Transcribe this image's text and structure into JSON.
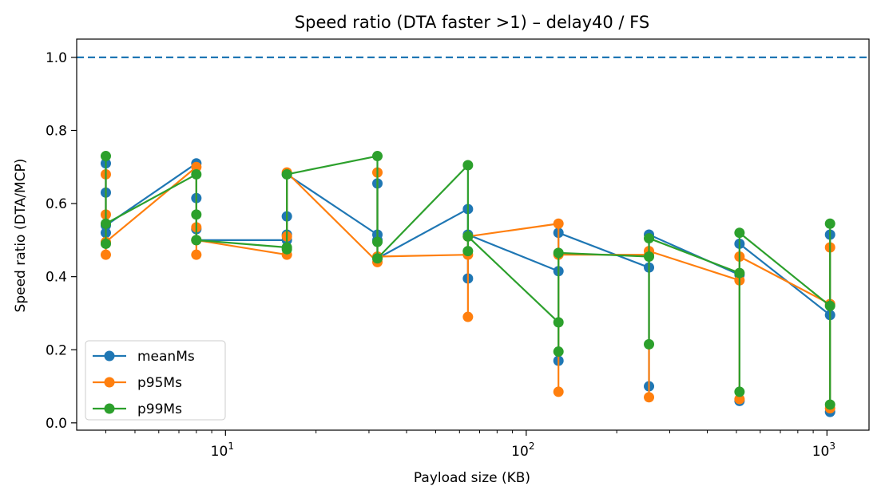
{
  "chart_data": {
    "type": "line",
    "title": "Speed ratio (DTA faster >1) – delay40 / FS",
    "xlabel": "Payload size (KB)",
    "ylabel": "Speed ratio (DTA/MCP)",
    "xscale": "log",
    "xlim": [
      3.2,
      1380
    ],
    "ylim": [
      -0.02,
      1.05
    ],
    "x_ticks": [
      {
        "value": 10,
        "base": "10",
        "exp": "1"
      },
      {
        "value": 100,
        "base": "10",
        "exp": "2"
      },
      {
        "value": 1000,
        "base": "10",
        "exp": "3"
      }
    ],
    "y_ticks": [
      "0.0",
      "0.2",
      "0.4",
      "0.6",
      "0.8",
      "1.0"
    ],
    "reference_line": {
      "y": 1.0,
      "style": "dashed",
      "color": "#1f77b4"
    },
    "legend_position": "lower-left",
    "series": [
      {
        "name": "meanMs",
        "color": "#1f77b4",
        "points": [
          [
            4,
            0.52
          ],
          [
            4,
            0.71
          ],
          [
            4,
            0.63
          ],
          [
            4,
            0.54
          ],
          [
            8,
            0.71
          ],
          [
            8,
            0.615
          ],
          [
            8,
            0.53
          ],
          [
            8,
            0.5
          ],
          [
            16,
            0.5
          ],
          [
            16,
            0.515
          ],
          [
            16,
            0.565
          ],
          [
            16,
            0.68
          ],
          [
            32,
            0.515
          ],
          [
            32,
            0.5
          ],
          [
            32,
            0.655
          ],
          [
            32,
            0.45
          ],
          [
            64,
            0.585
          ],
          [
            64,
            0.395
          ],
          [
            64,
            0.515
          ],
          [
            128,
            0.415
          ],
          [
            128,
            0.17
          ],
          [
            128,
            0.52
          ],
          [
            256,
            0.425
          ],
          [
            256,
            0.1
          ],
          [
            256,
            0.515
          ],
          [
            512,
            0.405
          ],
          [
            512,
            0.06
          ],
          [
            512,
            0.49
          ],
          [
            1024,
            0.295
          ],
          [
            1024,
            0.03
          ],
          [
            1024,
            0.515
          ]
        ]
      },
      {
        "name": "p95Ms",
        "color": "#ff7f0e",
        "points": [
          [
            4,
            0.46
          ],
          [
            4,
            0.68
          ],
          [
            4,
            0.57
          ],
          [
            4,
            0.495
          ],
          [
            8,
            0.7
          ],
          [
            8,
            0.535
          ],
          [
            8,
            0.46
          ],
          [
            8,
            0.5
          ],
          [
            16,
            0.46
          ],
          [
            16,
            0.51
          ],
          [
            16,
            0.685
          ],
          [
            32,
            0.44
          ],
          [
            32,
            0.685
          ],
          [
            32,
            0.455
          ],
          [
            64,
            0.46
          ],
          [
            64,
            0.29
          ],
          [
            64,
            0.51
          ],
          [
            128,
            0.545
          ],
          [
            128,
            0.085
          ],
          [
            128,
            0.46
          ],
          [
            256,
            0.46
          ],
          [
            256,
            0.07
          ],
          [
            256,
            0.47
          ],
          [
            512,
            0.39
          ],
          [
            512,
            0.065
          ],
          [
            512,
            0.455
          ],
          [
            1024,
            0.325
          ],
          [
            1024,
            0.04
          ],
          [
            1024,
            0.48
          ]
        ]
      },
      {
        "name": "p99Ms",
        "color": "#2ca02c",
        "points": [
          [
            4,
            0.49
          ],
          [
            4,
            0.73
          ],
          [
            4,
            0.545
          ],
          [
            8,
            0.68
          ],
          [
            8,
            0.57
          ],
          [
            8,
            0.5
          ],
          [
            16,
            0.48
          ],
          [
            16,
            0.475
          ],
          [
            16,
            0.68
          ],
          [
            32,
            0.73
          ],
          [
            32,
            0.495
          ],
          [
            32,
            0.45
          ],
          [
            64,
            0.705
          ],
          [
            64,
            0.47
          ],
          [
            64,
            0.51
          ],
          [
            128,
            0.275
          ],
          [
            128,
            0.195
          ],
          [
            128,
            0.465
          ],
          [
            256,
            0.455
          ],
          [
            256,
            0.215
          ],
          [
            256,
            0.505
          ],
          [
            512,
            0.41
          ],
          [
            512,
            0.085
          ],
          [
            512,
            0.52
          ],
          [
            1024,
            0.32
          ],
          [
            1024,
            0.05
          ],
          [
            1024,
            0.545
          ]
        ]
      }
    ]
  }
}
